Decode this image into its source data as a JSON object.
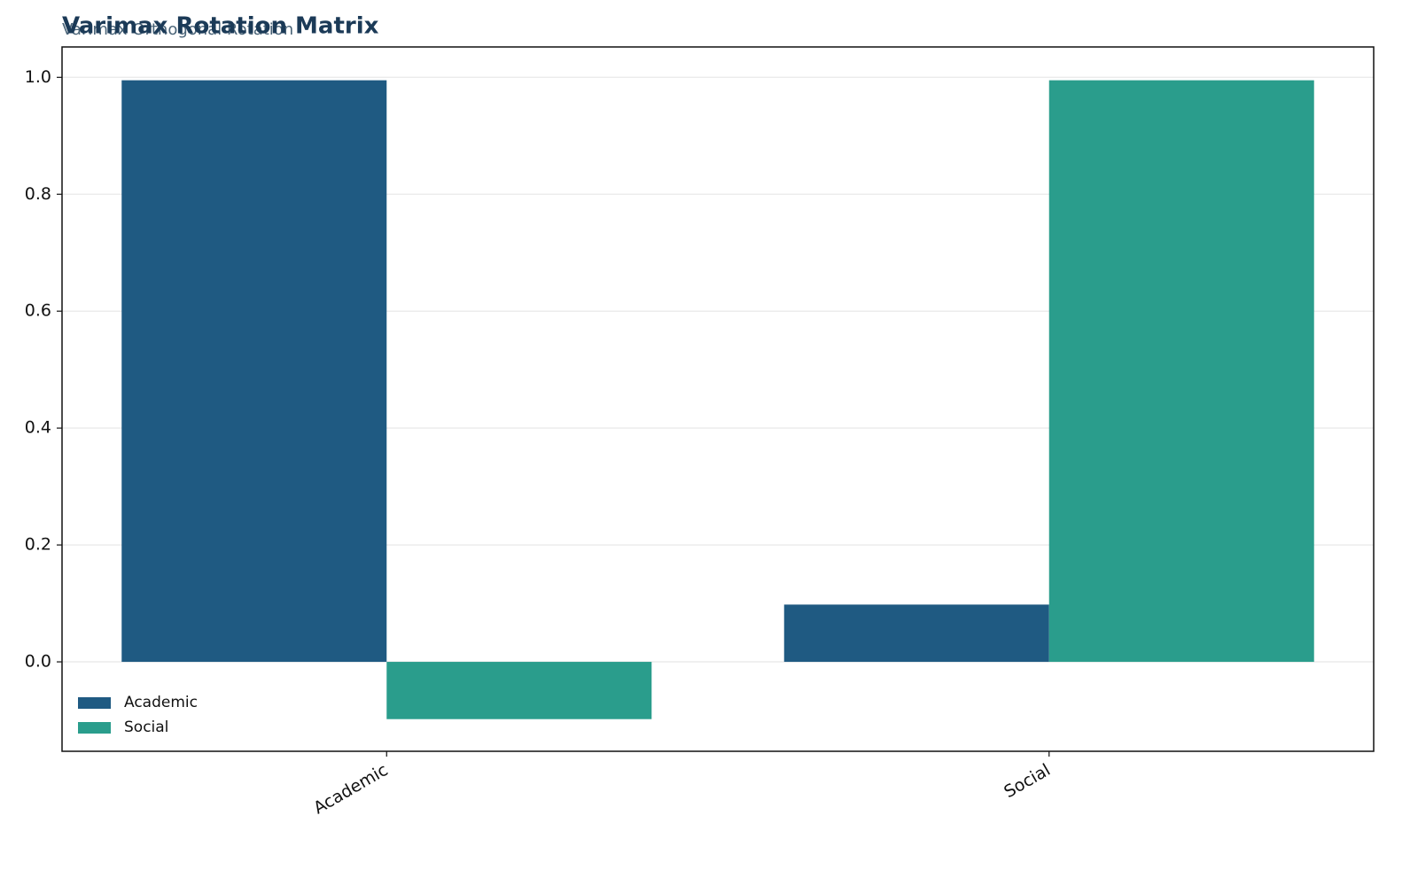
{
  "chart_data": {
    "type": "bar",
    "title": "Varimax Rotation Matrix",
    "subtitle": "Varimax Orthogonal Rotation",
    "categories": [
      "Academic",
      "Social"
    ],
    "series": [
      {
        "name": "Academic",
        "color": "#1f5a82",
        "values": [
          0.995,
          0.098
        ]
      },
      {
        "name": "Social",
        "color": "#2a9d8c",
        "values": [
          -0.098,
          0.995
        ]
      }
    ],
    "ylim": [
      -0.153,
      1.052
    ],
    "yticks": [
      0.0,
      0.2,
      0.4,
      0.6,
      0.8,
      1.0
    ],
    "ytick_labels": [
      "0.0",
      "0.2",
      "0.4",
      "0.6",
      "0.8",
      "1.0"
    ],
    "grid": true,
    "legend": "lower left"
  }
}
